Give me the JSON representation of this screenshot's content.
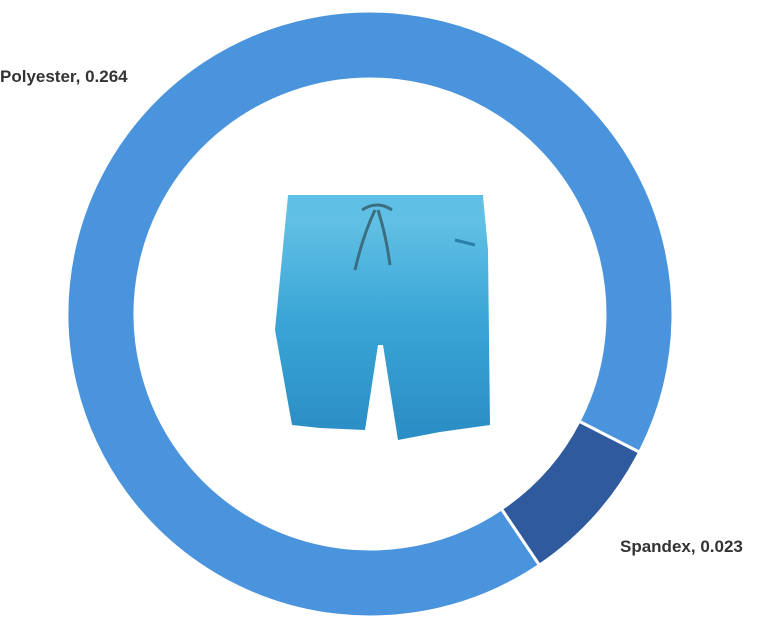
{
  "chart_data": {
    "type": "donut",
    "categories": [
      "Polyester",
      "Spandex"
    ],
    "values": [
      0.264,
      0.023
    ],
    "colors": [
      "#4a93dd",
      "#2f5b9e"
    ]
  }
}
